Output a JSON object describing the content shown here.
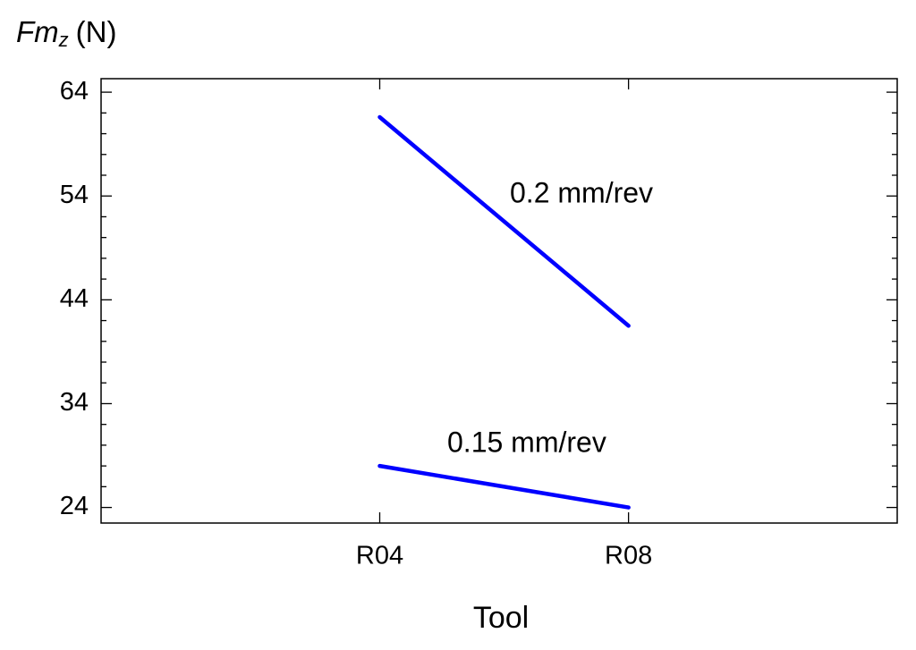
{
  "chart_data": {
    "type": "line",
    "y_label": {
      "main": "Fm",
      "subscript": "z",
      "unit": "(N)"
    },
    "x_label": "Tool",
    "categories": [
      "R04",
      "R08"
    ],
    "series": [
      {
        "name": "0.2 mm/rev",
        "color": "#0000ff",
        "values": [
          61.6,
          41.5
        ]
      },
      {
        "name": "0.15 mm/rev",
        "color": "#0000ff",
        "values": [
          28.0,
          24.0
        ]
      }
    ],
    "ylim": [
      22.5,
      65.3
    ],
    "yticks": [
      24,
      34,
      44,
      54,
      64
    ]
  }
}
